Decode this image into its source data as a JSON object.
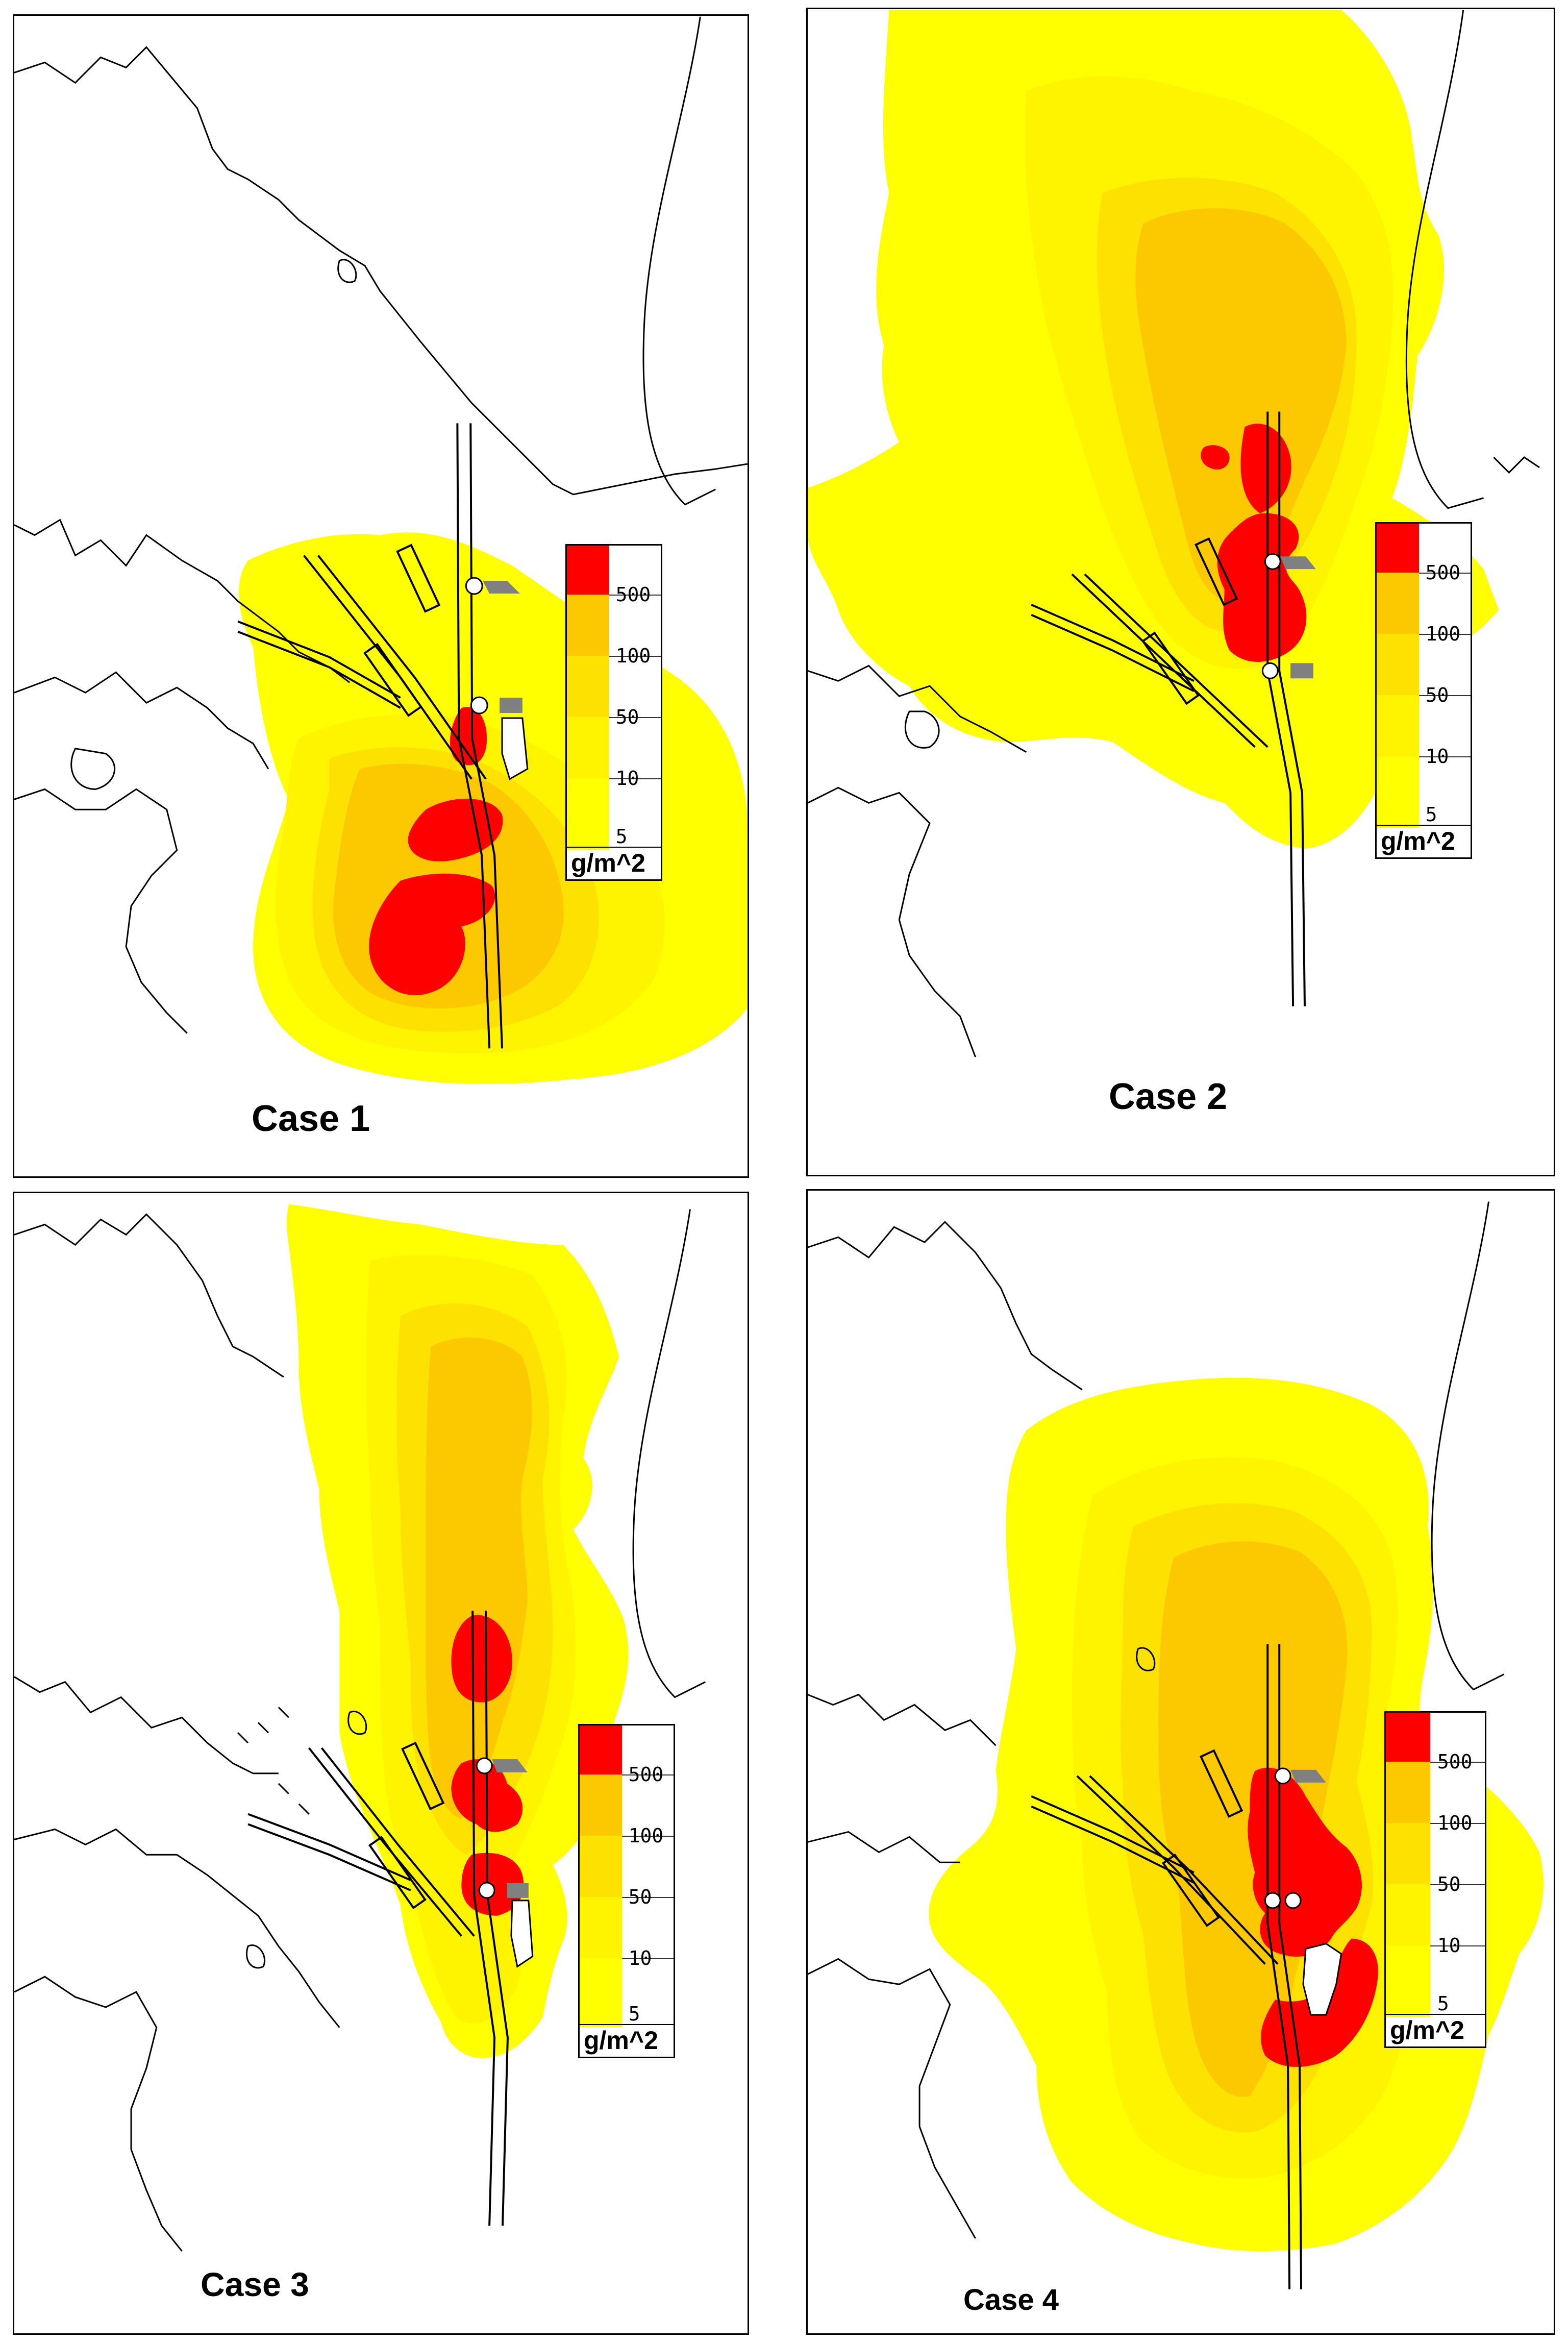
{
  "colors": {
    "band_500": "#ff0000",
    "band_100": "#fcc800",
    "band_50": "#fde100",
    "band_10": "#fff400",
    "band_5": "#ffff00",
    "outline": "#000000",
    "structure_gray": "#808080"
  },
  "legend": {
    "labels": [
      "500",
      "100",
      "50",
      "10",
      "5"
    ],
    "unit": "g/m^2"
  },
  "panels": [
    {
      "id": "case1",
      "caption": "Case 1"
    },
    {
      "id": "case2",
      "caption": "Case 2"
    },
    {
      "id": "case3",
      "caption": "Case 3"
    },
    {
      "id": "case4",
      "caption": "Case 4"
    }
  ]
}
